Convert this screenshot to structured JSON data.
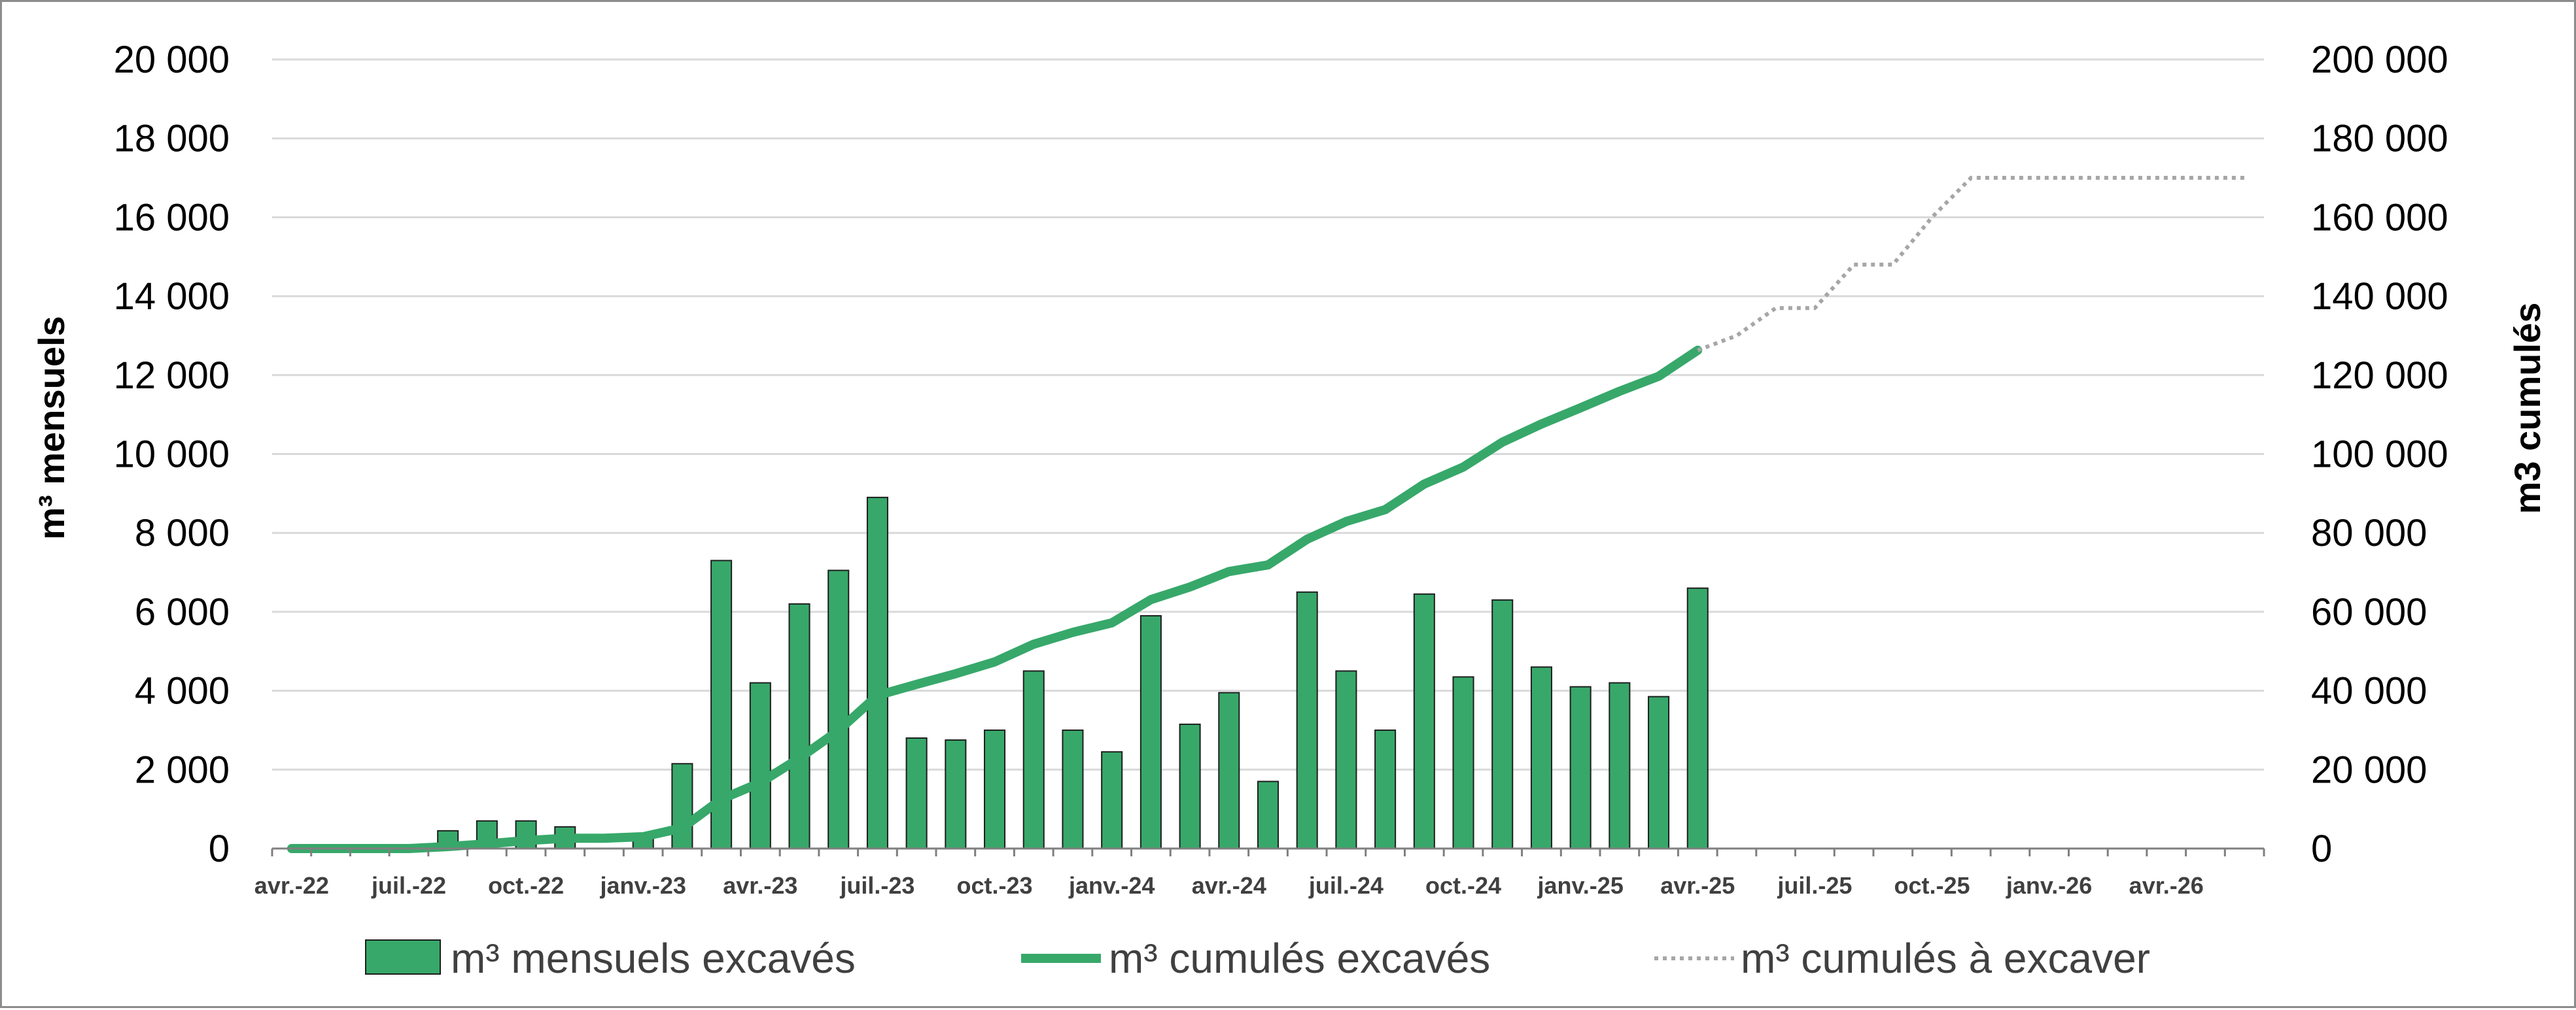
{
  "chart_data": {
    "type": "bar+line",
    "title": "",
    "left_axis": {
      "label": "m³ mensuels",
      "ylim": [
        0,
        20000
      ],
      "ticks": [
        "0",
        "2 000",
        "4 000",
        "6 000",
        "8 000",
        "10 000",
        "12 000",
        "14 000",
        "16 000",
        "18 000",
        "20 000"
      ]
    },
    "right_axis": {
      "label": "m3 cumulés",
      "ylim": [
        0,
        200000
      ],
      "ticks": [
        "0",
        "20 000",
        "40 000",
        "60 000",
        "80 000",
        "100 000",
        "120 000",
        "140 000",
        "160 000",
        "180 000",
        "200 000"
      ]
    },
    "x_tick_labels": [
      "avr.-22",
      "juil.-22",
      "oct.-22",
      "janv.-23",
      "avr.-23",
      "juil.-23",
      "oct.-23",
      "janv.-24",
      "avr.-24",
      "juil.-24",
      "oct.-24",
      "janv.-25",
      "avr.-25",
      "juil.-25",
      "oct.-25",
      "janv.-26",
      "avr.-26"
    ],
    "months": [
      "2022-04",
      "2022-05",
      "2022-06",
      "2022-07",
      "2022-08",
      "2022-09",
      "2022-10",
      "2022-11",
      "2022-12",
      "2023-01",
      "2023-02",
      "2023-03",
      "2023-04",
      "2023-05",
      "2023-06",
      "2023-07",
      "2023-08",
      "2023-09",
      "2023-10",
      "2023-11",
      "2023-12",
      "2024-01",
      "2024-02",
      "2024-03",
      "2024-04",
      "2024-05",
      "2024-06",
      "2024-07",
      "2024-08",
      "2024-09",
      "2024-10",
      "2024-11",
      "2024-12",
      "2025-01",
      "2025-02",
      "2025-03",
      "2025-04",
      "2025-05",
      "2025-06",
      "2025-07",
      "2025-08",
      "2025-09",
      "2025-10",
      "2025-11",
      "2025-12",
      "2026-01",
      "2026-02",
      "2026-03",
      "2026-04",
      "2026-05",
      "2026-06"
    ],
    "series": [
      {
        "name": "m³ mensuels excavés",
        "type": "bar",
        "axis": "left",
        "color": "#37a86a",
        "values": [
          0,
          0,
          0,
          0,
          450,
          700,
          700,
          550,
          0,
          350,
          2150,
          7300,
          4200,
          6200,
          7050,
          8900,
          2800,
          2750,
          3000,
          4500,
          3000,
          2450,
          5900,
          3150,
          3950,
          1700,
          6500,
          4500,
          3000,
          6450,
          4350,
          6300,
          4600,
          4100,
          4200,
          3850,
          6600
        ]
      },
      {
        "name": "m³ cumulés excavés",
        "type": "line",
        "axis": "right",
        "color": "#37a86a",
        "values": [
          0,
          0,
          0,
          0,
          500,
          1200,
          2000,
          2600,
          2600,
          3000,
          5200,
          12500,
          16700,
          22900,
          29900,
          38800,
          41600,
          44300,
          47300,
          51800,
          54800,
          57200,
          63100,
          66300,
          70200,
          71900,
          78400,
          82900,
          85900,
          92400,
          96700,
          103000,
          107600,
          111700,
          115900,
          119700,
          126300
        ]
      },
      {
        "name": "m³ cumulés à excaver",
        "type": "line",
        "axis": "right",
        "style": "dotted",
        "color": "#a6a6a6",
        "start_month_index": 36,
        "values": [
          126300,
          130000,
          137000,
          137000,
          148000,
          148000,
          160000,
          170000,
          170000,
          170000,
          170000,
          170000,
          170000,
          170000,
          170000
        ]
      }
    ],
    "legend_position": "bottom"
  }
}
